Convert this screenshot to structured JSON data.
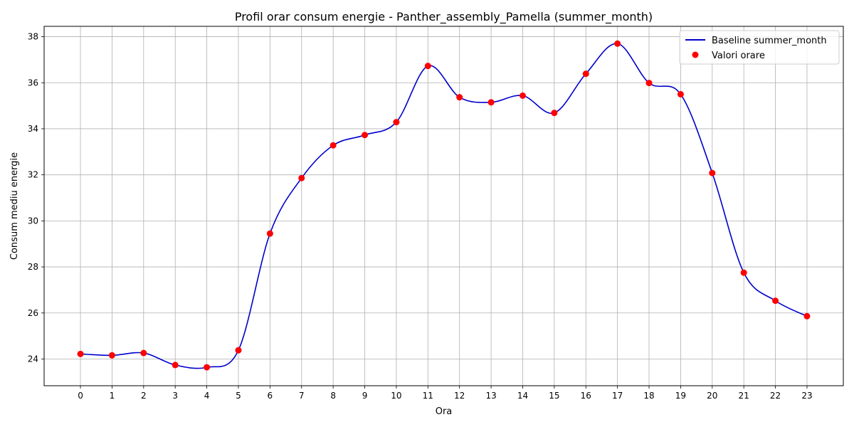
{
  "chart_data": {
    "type": "line",
    "title": "Profil orar consum energie - Panther_assembly_Pamella (summer_month)",
    "xlabel": "Ora",
    "ylabel": "Consum mediu energie",
    "x": [
      0,
      1,
      2,
      3,
      4,
      5,
      6,
      7,
      8,
      9,
      10,
      11,
      12,
      13,
      14,
      15,
      16,
      17,
      18,
      19,
      20,
      21,
      22,
      23
    ],
    "x_tick_labels": [
      "0",
      "1",
      "2",
      "3",
      "4",
      "5",
      "6",
      "7",
      "8",
      "9",
      "10",
      "11",
      "12",
      "13",
      "14",
      "15",
      "16",
      "17",
      "18",
      "19",
      "20",
      "21",
      "22",
      "23"
    ],
    "y_ticks": [
      24,
      26,
      28,
      30,
      32,
      34,
      36,
      38
    ],
    "y_tick_labels": [
      "24",
      "26",
      "28",
      "30",
      "32",
      "34",
      "36",
      "38"
    ],
    "xlim": [
      -1.15,
      24.15
    ],
    "ylim": [
      22.84,
      38.45
    ],
    "series": [
      {
        "name": "Baseline summer_month",
        "kind": "smooth-line",
        "color": "#0000cc",
        "values": [
          24.22,
          24.16,
          24.26,
          23.74,
          23.64,
          24.38,
          29.45,
          31.86,
          33.28,
          33.73,
          34.29,
          36.73,
          35.37,
          35.15,
          35.44,
          34.69,
          36.39,
          37.7,
          35.99,
          35.5,
          32.08,
          27.75,
          26.53,
          25.86
        ]
      },
      {
        "name": "Valori orare",
        "kind": "scatter",
        "color": "#ff0000",
        "values": [
          24.22,
          24.16,
          24.26,
          23.74,
          23.64,
          24.38,
          29.45,
          31.86,
          33.28,
          33.73,
          34.29,
          36.73,
          35.37,
          35.15,
          35.44,
          34.69,
          36.39,
          37.7,
          35.99,
          35.5,
          32.08,
          27.75,
          26.53,
          25.86
        ]
      }
    ],
    "grid": true,
    "legend_position": "top-right"
  }
}
